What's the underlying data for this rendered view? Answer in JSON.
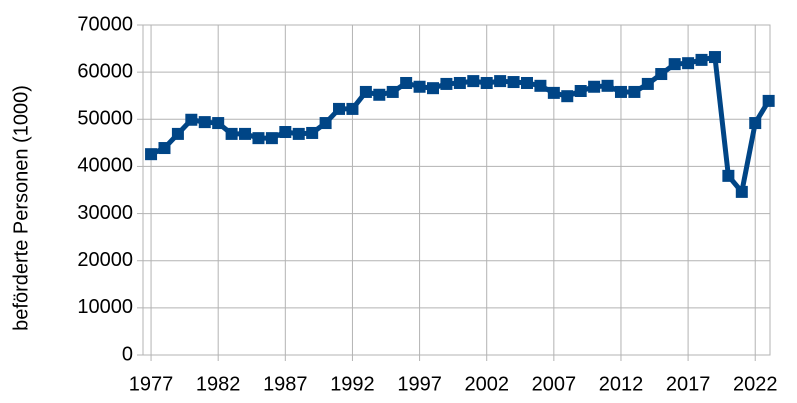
{
  "chart_data": {
    "type": "line",
    "y_label": "beförderte Personen (1000)",
    "x": [
      1977,
      1978,
      1979,
      1980,
      1981,
      1982,
      1983,
      1984,
      1985,
      1986,
      1987,
      1988,
      1989,
      1990,
      1991,
      1992,
      1993,
      1994,
      1995,
      1996,
      1997,
      1998,
      1999,
      2000,
      2001,
      2002,
      2003,
      2004,
      2005,
      2006,
      2007,
      2008,
      2009,
      2010,
      2011,
      2012,
      2013,
      2014,
      2015,
      2016,
      2017,
      2018,
      2019,
      2020,
      2021,
      2022,
      2023
    ],
    "series": [
      {
        "color": "#004586",
        "values": [
          42600,
          43900,
          46900,
          49900,
          49400,
          49200,
          46900,
          46900,
          46000,
          46000,
          47300,
          46900,
          47100,
          49200,
          52200,
          52200,
          55800,
          55200,
          55800,
          57700,
          56900,
          56600,
          57500,
          57700,
          58100,
          57700,
          58100,
          57900,
          57700,
          57100,
          55600,
          54900,
          56000,
          56900,
          57100,
          55800,
          55800,
          57500,
          59600,
          61700,
          61900,
          62600,
          63200,
          38000,
          34600,
          49200,
          53900
        ]
      }
    ],
    "xlim": [
      1976.4,
      2023.1
    ],
    "xticks": [
      1977,
      1982,
      1987,
      1992,
      1997,
      2002,
      2007,
      2012,
      2017,
      2022
    ],
    "ylim": [
      0,
      70000
    ],
    "yticks": [
      0,
      10000,
      20000,
      30000,
      40000,
      50000,
      60000,
      70000
    ],
    "grid": true
  }
}
